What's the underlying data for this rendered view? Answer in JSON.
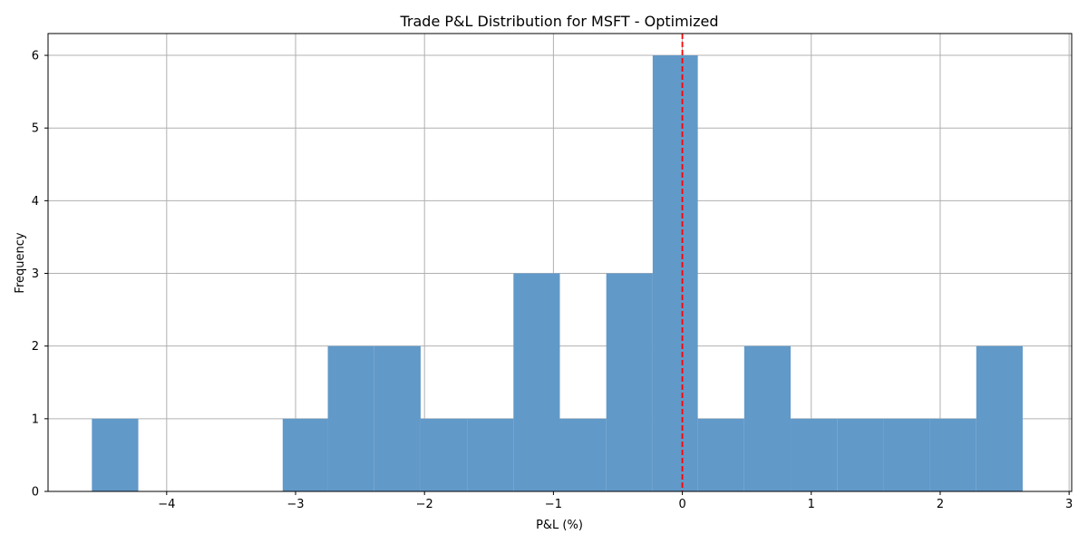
{
  "chart_data": {
    "type": "bar",
    "subtype": "histogram",
    "title": "Trade P&L Distribution for MSFT - Optimized",
    "xlabel": "P&L (%)",
    "ylabel": "Frequency",
    "xlim": [
      -4.92,
      3.02
    ],
    "ylim": [
      0,
      6.3
    ],
    "xticks": [
      -4,
      -3,
      -2,
      -1,
      0,
      1,
      2,
      3
    ],
    "xtick_labels": [
      "−4",
      "−3",
      "−2",
      "−1",
      "0",
      "1",
      "2",
      "3"
    ],
    "yticks": [
      0,
      1,
      2,
      3,
      4,
      5,
      6
    ],
    "ytick_labels": [
      "0",
      "1",
      "2",
      "3",
      "4",
      "5",
      "6"
    ],
    "grid": true,
    "bar_color": "#6199c9",
    "bins": [
      {
        "x0": -4.58,
        "x1": -4.22,
        "count": 1
      },
      {
        "x0": -4.22,
        "x1": -3.86,
        "count": 0
      },
      {
        "x0": -3.86,
        "x1": -3.5,
        "count": 0
      },
      {
        "x0": -3.5,
        "x1": -3.1,
        "count": 0
      },
      {
        "x0": -3.1,
        "x1": -2.75,
        "count": 1
      },
      {
        "x0": -2.75,
        "x1": -2.39,
        "count": 2
      },
      {
        "x0": -2.39,
        "x1": -2.03,
        "count": 2
      },
      {
        "x0": -2.03,
        "x1": -1.67,
        "count": 1
      },
      {
        "x0": -1.67,
        "x1": -1.31,
        "count": 1
      },
      {
        "x0": -1.31,
        "x1": -0.95,
        "count": 3
      },
      {
        "x0": -0.95,
        "x1": -0.59,
        "count": 1
      },
      {
        "x0": -0.59,
        "x1": -0.23,
        "count": 3
      },
      {
        "x0": -0.23,
        "x1": 0.12,
        "count": 6
      },
      {
        "x0": 0.12,
        "x1": 0.48,
        "count": 1
      },
      {
        "x0": 0.48,
        "x1": 0.84,
        "count": 2
      },
      {
        "x0": 0.84,
        "x1": 1.2,
        "count": 1
      },
      {
        "x0": 1.2,
        "x1": 1.56,
        "count": 1
      },
      {
        "x0": 1.56,
        "x1": 1.92,
        "count": 1
      },
      {
        "x0": 1.92,
        "x1": 2.28,
        "count": 1
      },
      {
        "x0": 2.28,
        "x1": 2.64,
        "count": 2
      }
    ],
    "reference_line": {
      "x": 0,
      "color": "#ff0000",
      "style": "dashed"
    }
  }
}
